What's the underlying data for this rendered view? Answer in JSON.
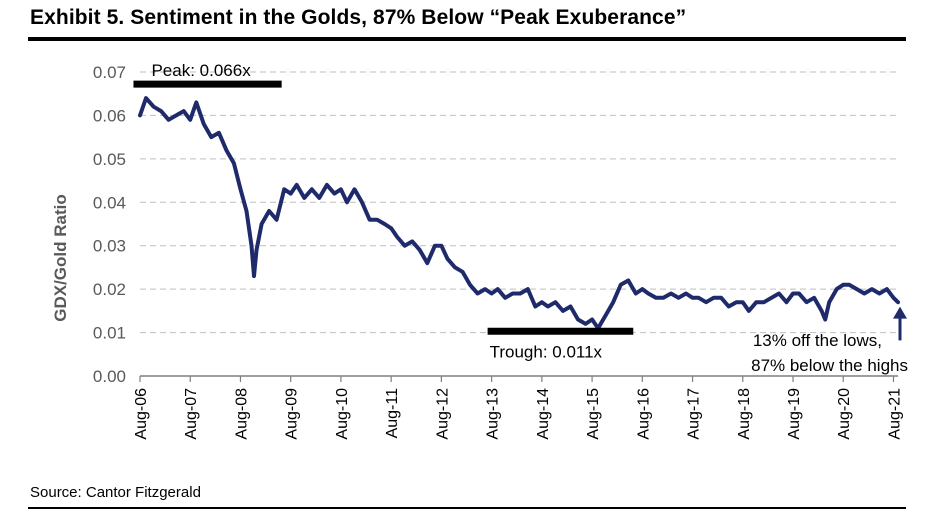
{
  "header": {
    "title": "Exhibit 5. Sentiment in the Golds, 87% Below “Peak Exuberance”"
  },
  "footer": {
    "source": "Source: Cantor Fitzgerald"
  },
  "colors": {
    "line": "#1f2a6b",
    "grid": "#bfbfbf",
    "axis": "#7f7f7f",
    "annotation_bar": "#000000"
  },
  "chart_data": {
    "type": "line",
    "title": "Exhibit 5. Sentiment in the Golds, 87% Below “Peak Exuberance”",
    "ylabel": "GDX/Gold  Ratio",
    "xlabel": "",
    "ylim": [
      0,
      0.07
    ],
    "yticks": [
      0.0,
      0.01,
      0.02,
      0.03,
      0.04,
      0.05,
      0.06,
      0.07
    ],
    "ytick_labels": [
      "0.00",
      "0.01",
      "0.02",
      "0.03",
      "0.04",
      "0.05",
      "0.06",
      "0.07"
    ],
    "grid": true,
    "xlim": [
      2006.58,
      2021.67
    ],
    "xticks": [
      2006.58,
      2007.58,
      2008.58,
      2009.58,
      2010.58,
      2011.58,
      2012.58,
      2013.58,
      2014.58,
      2015.58,
      2016.58,
      2017.58,
      2018.58,
      2019.58,
      2020.58,
      2021.58
    ],
    "xtick_labels": [
      "Aug-06",
      "Aug-07",
      "Aug-08",
      "Aug-09",
      "Aug-10",
      "Aug-11",
      "Aug-12",
      "Aug-13",
      "Aug-14",
      "Aug-15",
      "Aug-16",
      "Aug-17",
      "Aug-18",
      "Aug-19",
      "Aug-20",
      "Aug-21"
    ],
    "series": [
      {
        "name": "GDX/Gold Ratio",
        "x": [
          2006.58,
          2006.7,
          2006.85,
          2007.0,
          2007.15,
          2007.3,
          2007.45,
          2007.58,
          2007.7,
          2007.85,
          2008.0,
          2008.15,
          2008.3,
          2008.45,
          2008.58,
          2008.7,
          2008.8,
          2008.85,
          2008.9,
          2009.0,
          2009.15,
          2009.3,
          2009.45,
          2009.58,
          2009.7,
          2009.85,
          2010.0,
          2010.15,
          2010.3,
          2010.45,
          2010.58,
          2010.7,
          2010.85,
          2011.0,
          2011.15,
          2011.3,
          2011.45,
          2011.58,
          2011.7,
          2011.85,
          2012.0,
          2012.15,
          2012.3,
          2012.45,
          2012.58,
          2012.7,
          2012.85,
          2013.0,
          2013.15,
          2013.3,
          2013.45,
          2013.58,
          2013.7,
          2013.85,
          2014.0,
          2014.15,
          2014.3,
          2014.45,
          2014.58,
          2014.7,
          2014.85,
          2015.0,
          2015.15,
          2015.3,
          2015.45,
          2015.58,
          2015.7,
          2015.85,
          2016.0,
          2016.15,
          2016.3,
          2016.45,
          2016.58,
          2016.7,
          2016.85,
          2017.0,
          2017.15,
          2017.3,
          2017.45,
          2017.58,
          2017.7,
          2017.85,
          2018.0,
          2018.15,
          2018.3,
          2018.45,
          2018.58,
          2018.7,
          2018.85,
          2019.0,
          2019.15,
          2019.3,
          2019.45,
          2019.58,
          2019.7,
          2019.85,
          2020.0,
          2020.15,
          2020.22,
          2020.3,
          2020.45,
          2020.58,
          2020.7,
          2020.85,
          2021.0,
          2021.15,
          2021.3,
          2021.45,
          2021.58,
          2021.67
        ],
        "y": [
          0.06,
          0.064,
          0.062,
          0.061,
          0.059,
          0.06,
          0.061,
          0.059,
          0.063,
          0.058,
          0.055,
          0.056,
          0.052,
          0.049,
          0.043,
          0.038,
          0.03,
          0.023,
          0.029,
          0.035,
          0.038,
          0.036,
          0.043,
          0.042,
          0.044,
          0.041,
          0.043,
          0.041,
          0.044,
          0.042,
          0.043,
          0.04,
          0.043,
          0.04,
          0.036,
          0.036,
          0.035,
          0.034,
          0.032,
          0.03,
          0.031,
          0.029,
          0.026,
          0.03,
          0.03,
          0.027,
          0.025,
          0.024,
          0.021,
          0.019,
          0.02,
          0.019,
          0.02,
          0.018,
          0.019,
          0.019,
          0.02,
          0.016,
          0.017,
          0.016,
          0.017,
          0.015,
          0.016,
          0.013,
          0.012,
          0.013,
          0.011,
          0.014,
          0.017,
          0.021,
          0.022,
          0.019,
          0.02,
          0.019,
          0.018,
          0.018,
          0.019,
          0.018,
          0.019,
          0.018,
          0.018,
          0.017,
          0.018,
          0.018,
          0.016,
          0.017,
          0.017,
          0.015,
          0.017,
          0.017,
          0.018,
          0.019,
          0.017,
          0.019,
          0.019,
          0.017,
          0.018,
          0.015,
          0.013,
          0.017,
          0.02,
          0.021,
          0.021,
          0.02,
          0.019,
          0.02,
          0.019,
          0.02,
          0.018,
          0.017
        ]
      }
    ],
    "annotations": [
      {
        "text": "Peak: 0.066x",
        "bar_x": [
          2006.45,
          2009.4
        ],
        "bar_y": 0.0672
      },
      {
        "text": "Trough: 0.011x",
        "bar_x": [
          2013.5,
          2016.4
        ],
        "bar_y": 0.0103
      },
      {
        "text_line1": "13% off the lows,",
        "text_line2": "87% below the highs",
        "arrow_x": 2021.67,
        "arrow_from": 0.0082,
        "arrow_to": 0.0155
      }
    ]
  }
}
